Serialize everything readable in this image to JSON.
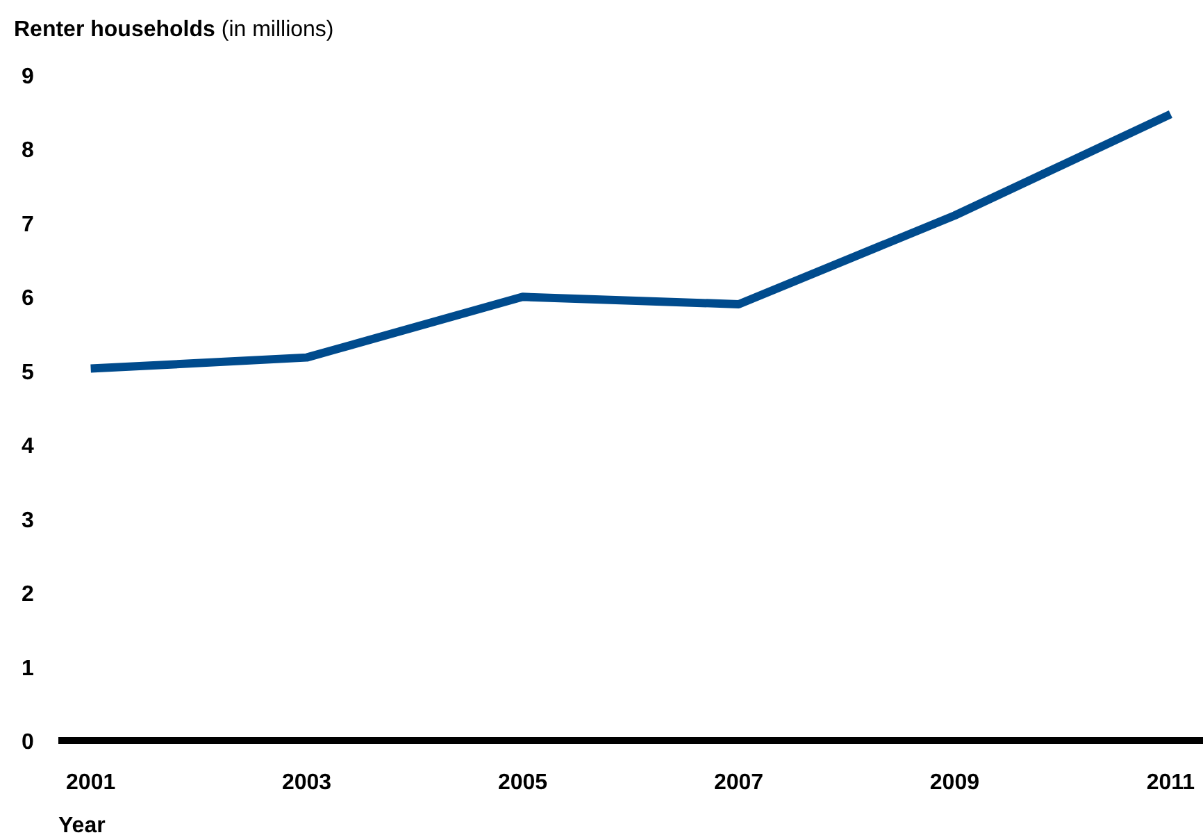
{
  "chart_data": {
    "type": "line",
    "ylabel": "Renter households (in millions)",
    "xlabel": "Year",
    "x": [
      2001,
      2003,
      2005,
      2007,
      2009,
      2011
    ],
    "series": [
      {
        "color": "#004b8d",
        "values": [
          5.03,
          5.18,
          6.0,
          5.9,
          7.1,
          8.47
        ]
      }
    ],
    "xlim": [
      2000.7,
      2011.3
    ],
    "xticks": [
      2001,
      2003,
      2005,
      2007,
      2009,
      2011
    ],
    "ylim": [
      0,
      9
    ],
    "yticks": [
      0,
      1,
      2,
      3,
      4,
      5,
      6,
      7,
      8,
      9
    ],
    "grid": false,
    "marker": "none",
    "line_style": "solid"
  }
}
